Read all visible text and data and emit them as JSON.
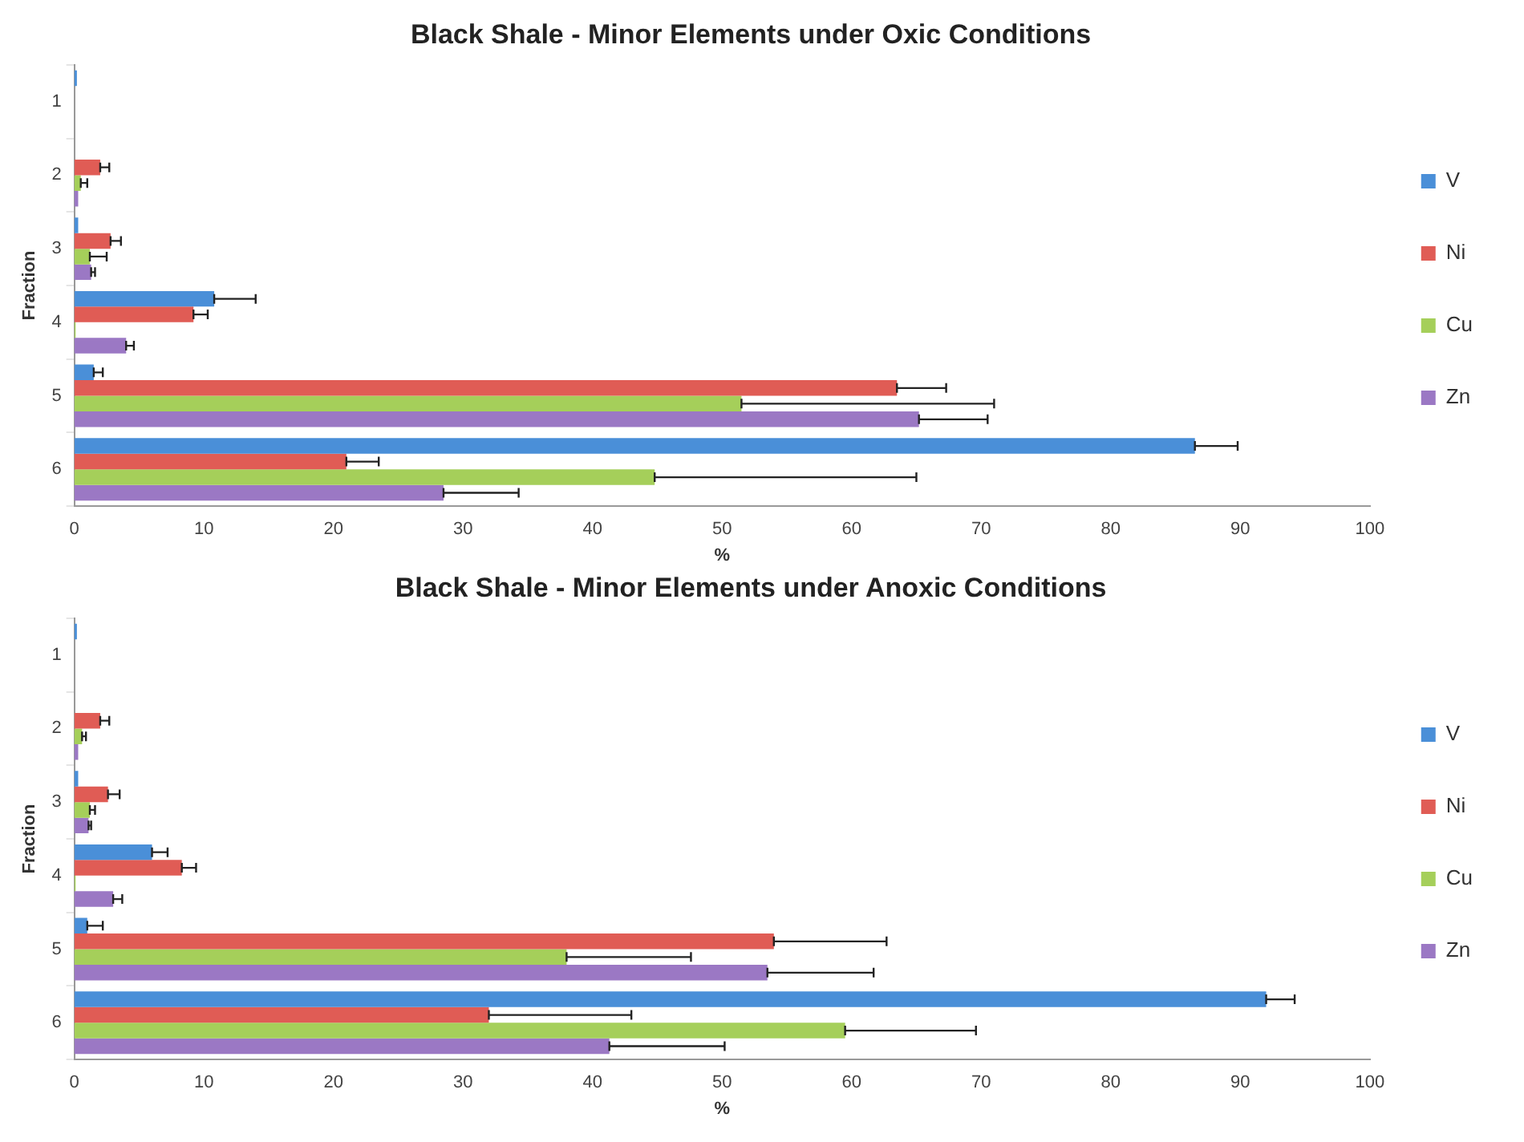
{
  "chart_data": [
    {
      "type": "bar",
      "orientation": "horizontal",
      "title": "Black Shale - Minor Elements under Oxic Conditions",
      "xlabel": "%",
      "ylabel": "Fraction",
      "categories": [
        "1",
        "2",
        "3",
        "4",
        "5",
        "6"
      ],
      "xlim": [
        0,
        100
      ],
      "xticks": [
        0,
        10,
        20,
        30,
        40,
        50,
        60,
        70,
        80,
        90,
        100
      ],
      "grid": false,
      "legend": "right",
      "series": [
        {
          "name": "V",
          "color": "#4a8fd8",
          "values": [
            0.2,
            0,
            0.3,
            10.8,
            1.5,
            86.5
          ],
          "errors": [
            null,
            null,
            null,
            [
              10.8,
              14
            ],
            [
              1.5,
              2.2
            ],
            [
              86.5,
              89.8
            ]
          ]
        },
        {
          "name": "Ni",
          "color": "#e05c55",
          "values": [
            0,
            2,
            2.8,
            9.2,
            63.5,
            21
          ],
          "errors": [
            null,
            [
              2,
              2.7
            ],
            [
              2.8,
              3.6
            ],
            [
              9.2,
              10.3
            ],
            [
              63.5,
              67.3
            ],
            [
              21,
              23.5
            ]
          ]
        },
        {
          "name": "Cu",
          "color": "#a5cf5a",
          "values": [
            0,
            0.5,
            1.2,
            0.1,
            51.5,
            44.8
          ],
          "errors": [
            null,
            [
              0.5,
              1
            ],
            [
              1.2,
              2.5
            ],
            null,
            [
              51.5,
              71
            ],
            [
              44.8,
              65
            ]
          ]
        },
        {
          "name": "Zn",
          "color": "#9b78c4",
          "values": [
            0,
            0.3,
            1.3,
            4,
            65.2,
            28.5
          ],
          "errors": [
            null,
            null,
            [
              1.3,
              1.6
            ],
            [
              4,
              4.6
            ],
            [
              65.2,
              70.5
            ],
            [
              28.5,
              34.3
            ]
          ]
        }
      ]
    },
    {
      "type": "bar",
      "orientation": "horizontal",
      "title": "Black Shale - Minor Elements under Anoxic Conditions",
      "xlabel": "%",
      "ylabel": "Fraction",
      "categories": [
        "1",
        "2",
        "3",
        "4",
        "5",
        "6"
      ],
      "xlim": [
        0,
        100
      ],
      "xticks": [
        0,
        10,
        20,
        30,
        40,
        50,
        60,
        70,
        80,
        90,
        100
      ],
      "grid": false,
      "legend": "right",
      "series": [
        {
          "name": "V",
          "color": "#4a8fd8",
          "values": [
            0.2,
            0,
            0.3,
            6,
            1,
            92
          ],
          "errors": [
            null,
            null,
            null,
            [
              6,
              7.2
            ],
            [
              1,
              2.2
            ],
            [
              92,
              94.2
            ]
          ]
        },
        {
          "name": "Ni",
          "color": "#e05c55",
          "values": [
            0,
            2,
            2.6,
            8.3,
            54,
            32
          ],
          "errors": [
            null,
            [
              2,
              2.7
            ],
            [
              2.6,
              3.5
            ],
            [
              8.3,
              9.4
            ],
            [
              54,
              62.7
            ],
            [
              32,
              43
            ]
          ]
        },
        {
          "name": "Cu",
          "color": "#a5cf5a",
          "values": [
            0,
            0.6,
            1.2,
            0.1,
            38,
            59.5
          ],
          "errors": [
            null,
            [
              0.6,
              0.9
            ],
            [
              1.2,
              1.6
            ],
            null,
            [
              38,
              47.6
            ],
            [
              59.5,
              69.6
            ]
          ]
        },
        {
          "name": "Zn",
          "color": "#9b78c4",
          "values": [
            0,
            0.3,
            1.1,
            3,
            53.5,
            41.3
          ],
          "errors": [
            null,
            null,
            [
              1.1,
              1.3
            ],
            [
              3,
              3.7
            ],
            [
              53.5,
              61.7
            ],
            [
              41.3,
              50.2
            ]
          ]
        }
      ]
    }
  ]
}
